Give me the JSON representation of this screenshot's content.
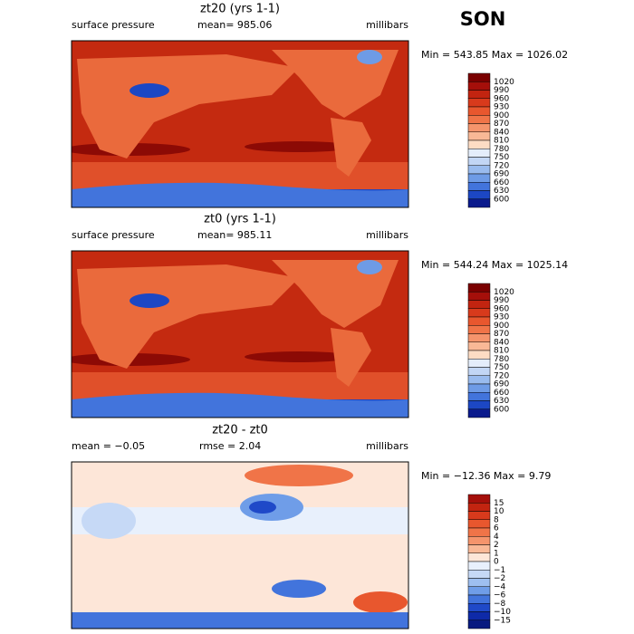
{
  "season": "SON",
  "panels": [
    {
      "title": "zt20 (yrs 1-1)",
      "field": "surface pressure",
      "stat": "mean= 985.06",
      "units": "millibars",
      "minmax": "Min = 543.85 Max = 1026.02",
      "colorbar": {
        "labels": [
          "1020",
          "990",
          "960",
          "930",
          "900",
          "870",
          "840",
          "810",
          "780",
          "750",
          "720",
          "690",
          "660",
          "630",
          "600"
        ],
        "colors": [
          "#7a0000",
          "#a50f0a",
          "#c22410",
          "#d83a1c",
          "#e8572e",
          "#f07448",
          "#f5946c",
          "#f9b896",
          "#fddcc4",
          "#e4edfb",
          "#c2d6f5",
          "#99bbee",
          "#6e9be6",
          "#4274dc",
          "#1c47c4",
          "#0a1a8c"
        ]
      }
    },
    {
      "title": "zt0 (yrs 1-1)",
      "field": "surface pressure",
      "stat": "mean= 985.11",
      "units": "millibars",
      "minmax": "Min = 544.24 Max = 1025.14",
      "colorbar": {
        "labels": [
          "1020",
          "990",
          "960",
          "930",
          "900",
          "870",
          "840",
          "810",
          "780",
          "750",
          "720",
          "690",
          "660",
          "630",
          "600"
        ],
        "colors": [
          "#7a0000",
          "#a50f0a",
          "#c22410",
          "#d83a1c",
          "#e8572e",
          "#f07448",
          "#f5946c",
          "#f9b896",
          "#fddcc4",
          "#e4edfb",
          "#c2d6f5",
          "#99bbee",
          "#6e9be6",
          "#4274dc",
          "#1c47c4",
          "#0a1a8c"
        ]
      }
    },
    {
      "title": "zt20 - zt0",
      "field": "mean =  −0.05",
      "stat": "rmse =   2.04",
      "units": "millibars",
      "minmax": "Min = −12.36 Max =   9.79",
      "colorbar": {
        "labels": [
          "15",
          "10",
          "8",
          "6",
          "4",
          "2",
          "1",
          "0",
          "−1",
          "−2",
          "−4",
          "−6",
          "−8",
          "−10",
          "−15"
        ],
        "colors": [
          "#a50f0a",
          "#c22410",
          "#d83a1c",
          "#e8572e",
          "#f07448",
          "#f5946c",
          "#f9b896",
          "#fde6d8",
          "#e8f0fc",
          "#c6d9f6",
          "#9ebff0",
          "#6f9de8",
          "#4274dc",
          "#1f49c8",
          "#0e2aa8",
          "#081a80"
        ]
      }
    }
  ]
}
